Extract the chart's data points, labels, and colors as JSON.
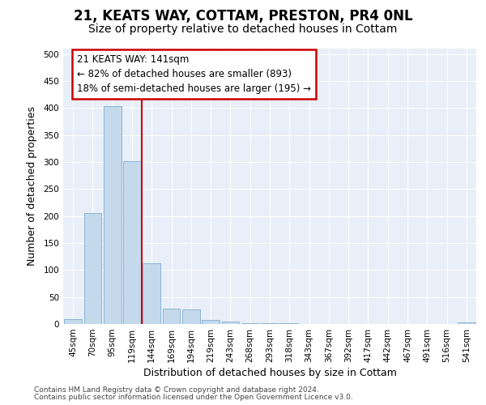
{
  "title_line1": "21, KEATS WAY, COTTAM, PRESTON, PR4 0NL",
  "title_line2": "Size of property relative to detached houses in Cottam",
  "xlabel": "Distribution of detached houses by size in Cottam",
  "ylabel": "Number of detached properties",
  "categories": [
    "45sqm",
    "70sqm",
    "95sqm",
    "119sqm",
    "144sqm",
    "169sqm",
    "194sqm",
    "219sqm",
    "243sqm",
    "268sqm",
    "293sqm",
    "318sqm",
    "343sqm",
    "367sqm",
    "392sqm",
    "417sqm",
    "442sqm",
    "467sqm",
    "491sqm",
    "516sqm",
    "541sqm"
  ],
  "values": [
    9,
    205,
    403,
    302,
    112,
    29,
    27,
    7,
    5,
    2,
    1,
    1,
    0,
    0,
    0,
    0,
    0,
    0,
    0,
    0,
    3
  ],
  "bar_color": "#c5d9ed",
  "bar_edge_color": "#8ab4d4",
  "vline_color": "#cc0000",
  "vline_index": 3.5,
  "annotation_text": "21 KEATS WAY: 141sqm\n← 82% of detached houses are smaller (893)\n18% of semi-detached houses are larger (195) →",
  "ann_box_edge_color": "#cc0000",
  "ann_box_face_color": "#ffffff",
  "ylim": [
    0,
    510
  ],
  "yticks": [
    0,
    50,
    100,
    150,
    200,
    250,
    300,
    350,
    400,
    450,
    500
  ],
  "fig_bg_color": "#ffffff",
  "plot_bg_color": "#e8eff8",
  "footer_line1": "Contains HM Land Registry data © Crown copyright and database right 2024.",
  "footer_line2": "Contains public sector information licensed under the Open Government Licence v3.0.",
  "title_fontsize": 12,
  "subtitle_fontsize": 10,
  "tick_fontsize": 7.5,
  "axis_label_fontsize": 9,
  "footer_fontsize": 6.5,
  "ann_fontsize": 8.5
}
